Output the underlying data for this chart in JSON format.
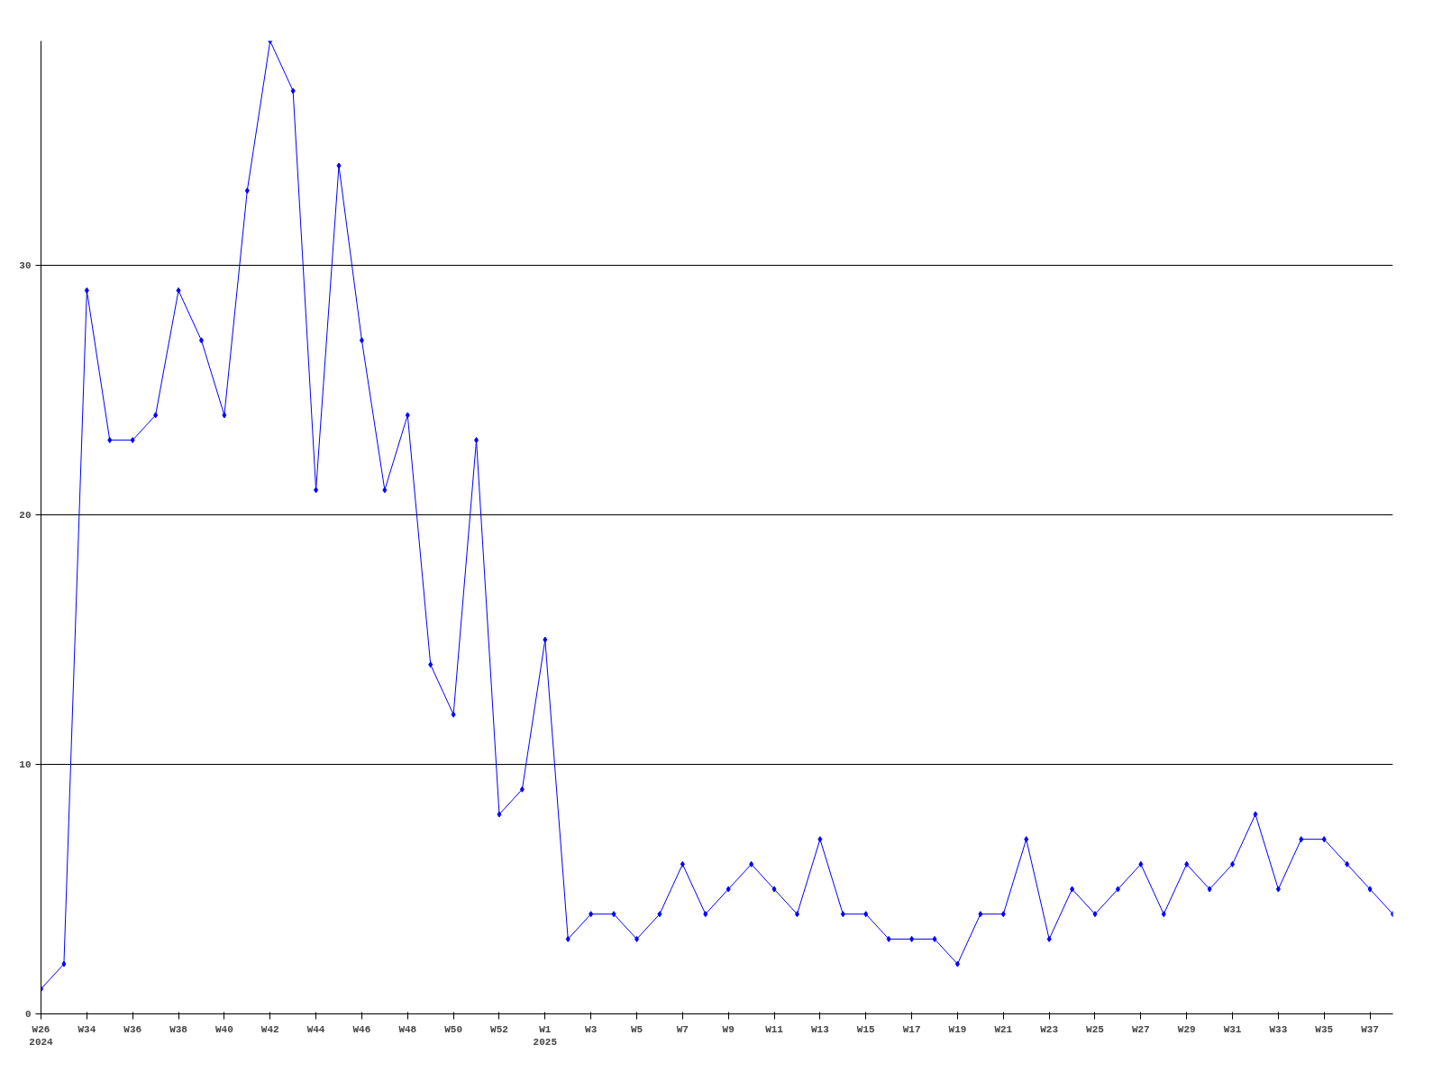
{
  "chart_data": {
    "type": "line",
    "categories": [
      "W26\n2024",
      null,
      "W34",
      null,
      "W36",
      null,
      "W38",
      null,
      "W40",
      null,
      "W42",
      null,
      "W44",
      null,
      "W46",
      null,
      "W48",
      null,
      "W50",
      null,
      "W52",
      null,
      "W1\n2025",
      null,
      "W3",
      null,
      "W5",
      null,
      "W7",
      null,
      "W9",
      null,
      "W11",
      null,
      "W13",
      null,
      "W15",
      null,
      "W17",
      null,
      "W19",
      null,
      "W21",
      null,
      "W23",
      null,
      "W25",
      null,
      "W27",
      null,
      "W29",
      null,
      "W31",
      null,
      "W33",
      null,
      "W35",
      null,
      "W37",
      null
    ],
    "series": [
      {
        "color": "#0000ff",
        "values": [
          1,
          2,
          29,
          23,
          23,
          24,
          29,
          27,
          24,
          33,
          39,
          37,
          21,
          34,
          27,
          21,
          24,
          14,
          12,
          23,
          8,
          9,
          15,
          3,
          4,
          4,
          3,
          4,
          6,
          4,
          5,
          6,
          5,
          4,
          7,
          4,
          4,
          3,
          3,
          3,
          2,
          4,
          4,
          7,
          3,
          5,
          4,
          5,
          6,
          4,
          6,
          5,
          6,
          8,
          5,
          7,
          7,
          6,
          5,
          4
        ]
      }
    ],
    "ylim": [
      0,
      39
    ],
    "yticks": [
      0,
      10,
      20,
      30
    ],
    "grid": "y",
    "marker": "diamond",
    "line_style": "solid"
  }
}
